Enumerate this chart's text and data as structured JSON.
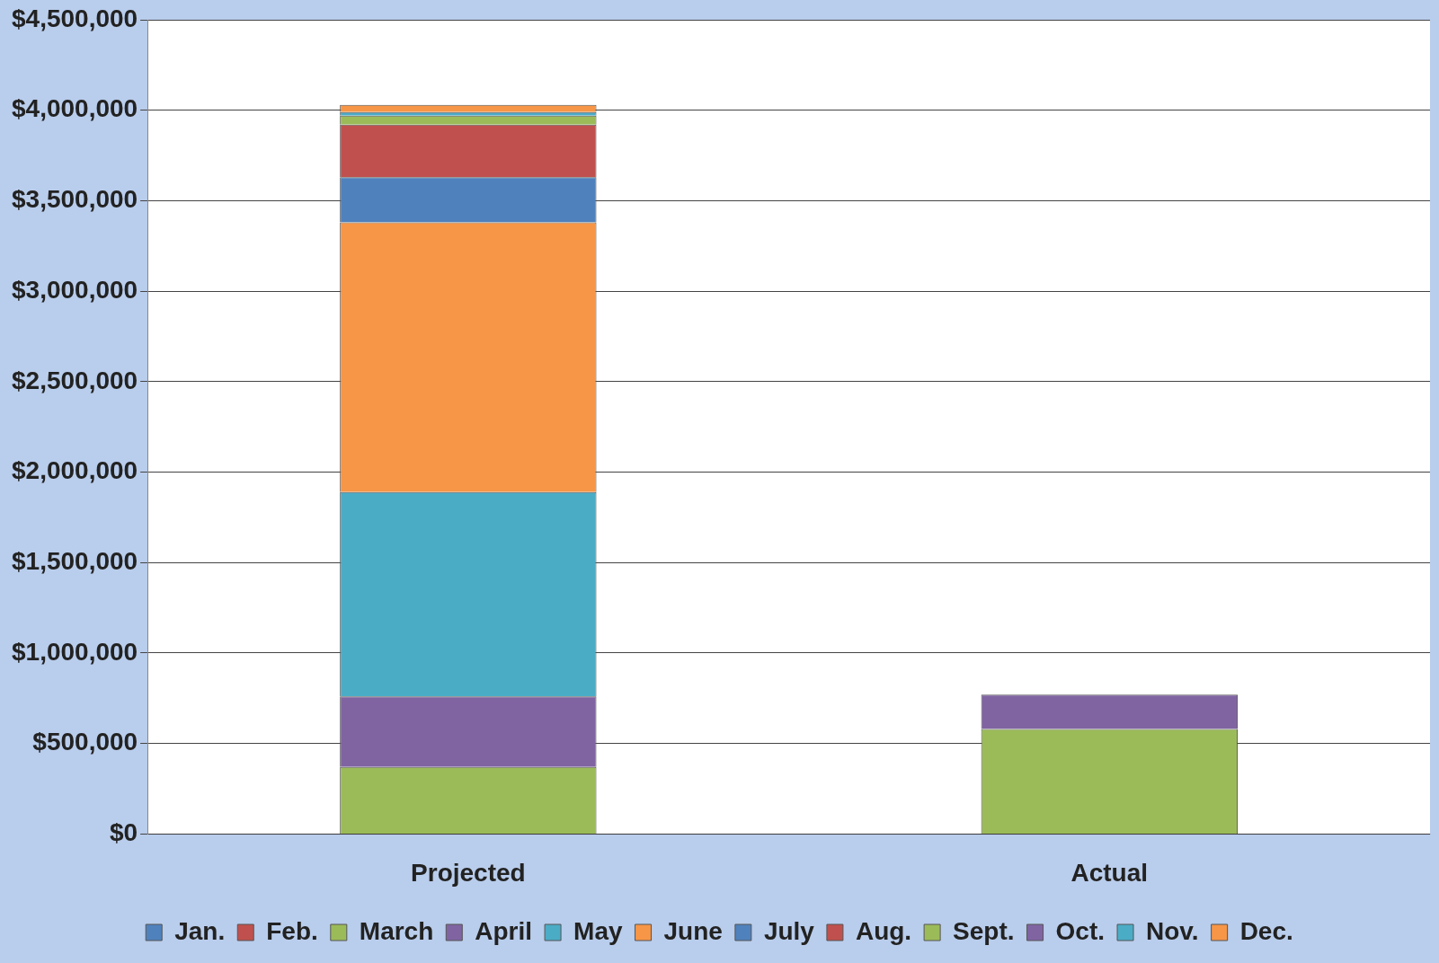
{
  "chart_data": {
    "type": "bar",
    "stacked": true,
    "categories": [
      "Projected",
      "Actual"
    ],
    "series": [
      {
        "name": "Jan.",
        "color": "#4f81bd",
        "values": [
          null,
          null
        ]
      },
      {
        "name": "Feb.",
        "color": "#c0504d",
        "values": [
          0,
          0
        ]
      },
      {
        "name": "March",
        "color": "#9bbb59",
        "values": [
          370000,
          580000
        ]
      },
      {
        "name": "April",
        "color": "#8064a2",
        "values": [
          390000,
          190000
        ]
      },
      {
        "name": "May",
        "color": "#4bacc6",
        "values": [
          1130000,
          0
        ]
      },
      {
        "name": "June",
        "color": "#f79646",
        "values": [
          1490000,
          0
        ]
      },
      {
        "name": "July",
        "color": "#4f81bd",
        "values": [
          250000,
          0
        ]
      },
      {
        "name": "Aug.",
        "color": "#c0504d",
        "values": [
          290000,
          0
        ]
      },
      {
        "name": "Sept.",
        "color": "#9bbb59",
        "values": [
          50000,
          0
        ]
      },
      {
        "name": "Oct.",
        "color": "#8064a2",
        "values": [
          0,
          0
        ]
      },
      {
        "name": "Nov.",
        "color": "#4bacc6",
        "values": [
          20000,
          0
        ]
      },
      {
        "name": "Dec.",
        "color": "#f79646",
        "values": [
          40000,
          0
        ]
      }
    ],
    "ylim": [
      0,
      4500000
    ],
    "yticks": [
      {
        "value": 0,
        "label": "$0"
      },
      {
        "value": 500000,
        "label": "$500,000"
      },
      {
        "value": 1000000,
        "label": "$1,000,000"
      },
      {
        "value": 1500000,
        "label": "$1,500,000"
      },
      {
        "value": 2000000,
        "label": "$2,000,000"
      },
      {
        "value": 2500000,
        "label": "$2,500,000"
      },
      {
        "value": 3000000,
        "label": "$3,000,000"
      },
      {
        "value": 3500000,
        "label": "$3,500,000"
      },
      {
        "value": 4000000,
        "label": "$4,000,000"
      },
      {
        "value": 4500000,
        "label": "$4,500,000"
      }
    ],
    "grid": "y",
    "legend": "bottom"
  }
}
